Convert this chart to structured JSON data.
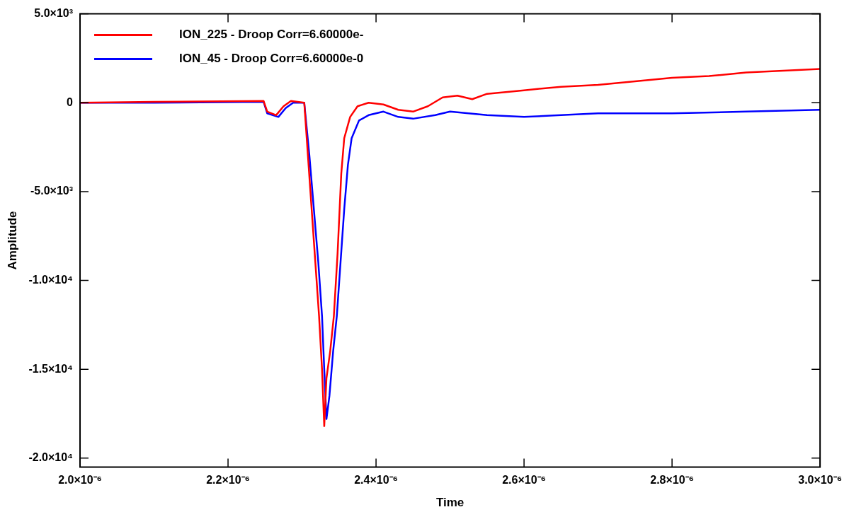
{
  "chart_data": {
    "type": "line",
    "xlabel": "Time",
    "ylabel": "Amplitude",
    "xlim": [
      2e-06,
      3e-06
    ],
    "xticks": [
      {
        "value": 2e-06,
        "label": "2.0×10⁻⁶"
      },
      {
        "value": 2.2e-06,
        "label": "2.2×10⁻⁶"
      },
      {
        "value": 2.4e-06,
        "label": "2.4×10⁻⁶"
      },
      {
        "value": 2.6e-06,
        "label": "2.6×10⁻⁶"
      },
      {
        "value": 2.8e-06,
        "label": "2.8×10⁻⁶"
      },
      {
        "value": 3e-06,
        "label": "3.0×10⁻⁶"
      }
    ],
    "ylim": [
      -20500,
      5000
    ],
    "yticks": [
      {
        "value": 5000,
        "label": "5.0×10³"
      },
      0,
      {
        "value": -5000,
        "label": "-5.0×10³"
      },
      {
        "value": -10000,
        "label": "-1.0×10⁴"
      },
      {
        "value": -15000,
        "label": "-1.5×10⁴"
      },
      {
        "value": -20000,
        "label": "-2.0×10⁴"
      }
    ],
    "grid": false,
    "legend": "top left",
    "marker": "none",
    "line_style": "solid",
    "series": [
      {
        "name": "ION_225 - Droop Corr=6.60000e-",
        "color": "#ff0000",
        "x": [
          2e-06,
          2.1e-06,
          2.248e-06,
          2.253e-06,
          2.265e-06,
          2.275e-06,
          2.285e-06,
          2.303e-06,
          2.308e-06,
          2.313e-06,
          2.318e-06,
          2.323e-06,
          2.327e-06,
          2.33e-06,
          2.333e-06,
          2.338e-06,
          2.343e-06,
          2.348e-06,
          2.353e-06,
          2.357e-06,
          2.365e-06,
          2.375e-06,
          2.39e-06,
          2.41e-06,
          2.43e-06,
          2.45e-06,
          2.47e-06,
          2.49e-06,
          2.51e-06,
          2.53e-06,
          2.55e-06,
          2.6e-06,
          2.65e-06,
          2.7e-06,
          2.75e-06,
          2.8e-06,
          2.85e-06,
          2.9e-06,
          2.95e-06,
          3e-06
        ],
        "values": [
          0,
          50,
          100,
          -500,
          -700,
          -200,
          100,
          0,
          -3000,
          -6000,
          -9000,
          -12000,
          -15000,
          -18200,
          -15500,
          -14000,
          -12000,
          -8500,
          -4000,
          -2000,
          -800,
          -200,
          0,
          -100,
          -400,
          -500,
          -200,
          300,
          400,
          200,
          500,
          700,
          900,
          1000,
          1200,
          1400,
          1500,
          1700,
          1800,
          1900
        ]
      },
      {
        "name": "ION_45 - Droop Corr=6.60000e-0",
        "color": "#0000ff",
        "x": [
          2e-06,
          2.1e-06,
          2.248e-06,
          2.253e-06,
          2.268e-06,
          2.278e-06,
          2.288e-06,
          2.303e-06,
          2.31e-06,
          2.316e-06,
          2.322e-06,
          2.327e-06,
          2.33e-06,
          2.333e-06,
          2.337e-06,
          2.342e-06,
          2.347e-06,
          2.352e-06,
          2.357e-06,
          2.362e-06,
          2.367e-06,
          2.377e-06,
          2.39e-06,
          2.41e-06,
          2.43e-06,
          2.45e-06,
          2.48e-06,
          2.5e-06,
          2.55e-06,
          2.6e-06,
          2.65e-06,
          2.7e-06,
          2.8e-06,
          2.9e-06,
          3e-06
        ],
        "values": [
          0,
          0,
          50,
          -600,
          -800,
          -300,
          0,
          0,
          -3000,
          -6000,
          -9000,
          -12000,
          -15000,
          -17800,
          -16500,
          -14000,
          -12000,
          -9000,
          -6000,
          -3500,
          -2000,
          -1000,
          -700,
          -500,
          -800,
          -900,
          -700,
          -500,
          -700,
          -800,
          -700,
          -600,
          -600,
          -500,
          -400
        ]
      }
    ]
  }
}
